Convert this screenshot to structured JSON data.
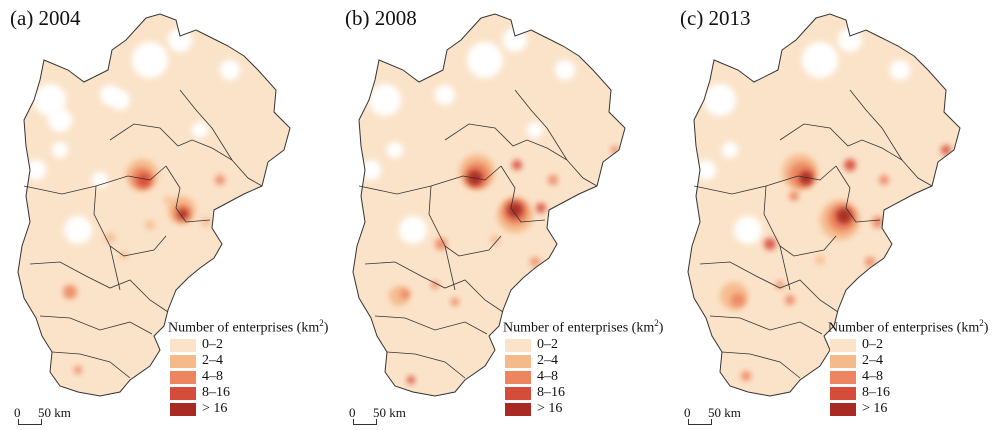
{
  "panels": [
    {
      "title": "(a) 2004"
    },
    {
      "title": "(b) 2008"
    },
    {
      "title": "(c) 2013"
    }
  ],
  "legend": {
    "title_main": "Number of enterprises (km",
    "title_sup": "2",
    "title_end": ")",
    "classes": [
      {
        "label": "0–2",
        "color": "#fbe3c9"
      },
      {
        "label": "2–4",
        "color": "#f5b98a"
      },
      {
        "label": "4–8",
        "color": "#ec8560"
      },
      {
        "label": "8–16",
        "color": "#d54c3a"
      },
      {
        "label": "> 16",
        "color": "#a82a22"
      }
    ]
  },
  "scale": {
    "zero": "0",
    "distance": "50 km"
  },
  "colors": {
    "background": "#ffffff",
    "boundary": "#333333"
  }
}
